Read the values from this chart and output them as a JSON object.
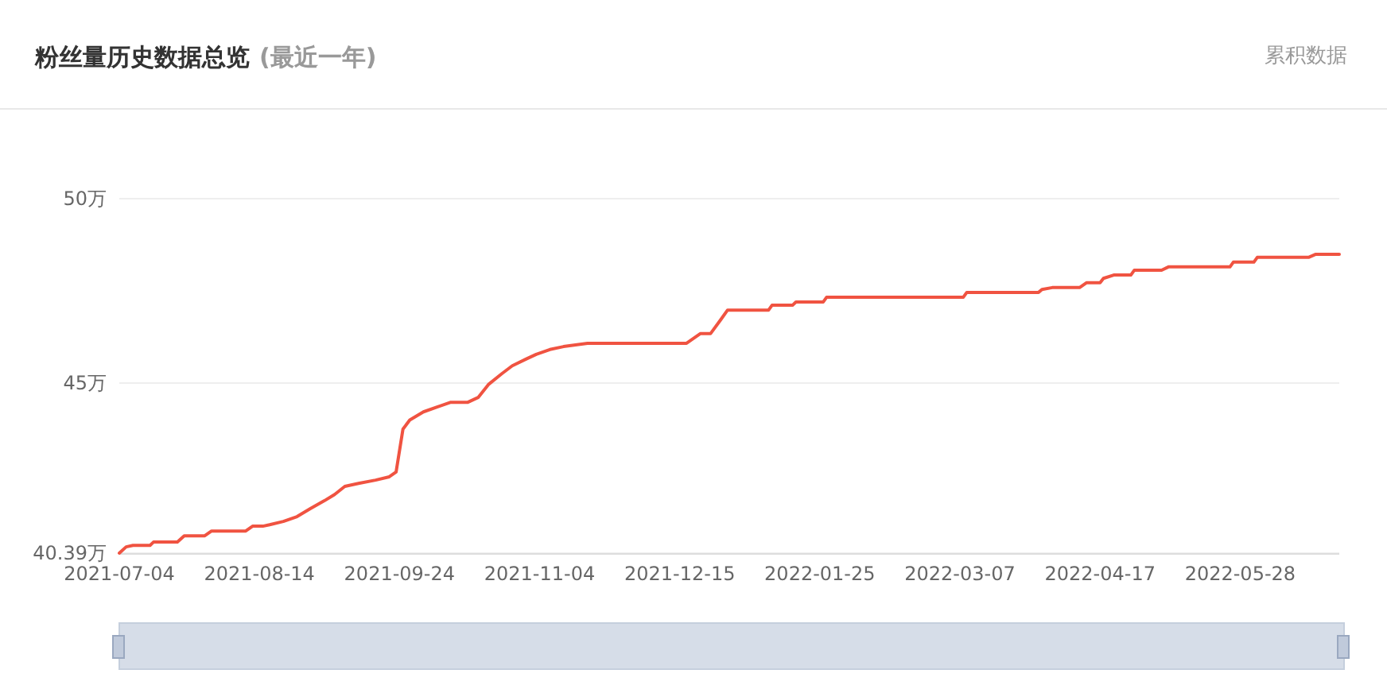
{
  "chart_data": {
    "type": "line",
    "title": "粉丝量历史数据总览",
    "subtitle": "(最近一年)",
    "annotations": [
      "累积数据"
    ],
    "x": [
      "2021-07-04",
      "2021-07-06",
      "2021-07-08",
      "2021-07-13",
      "2021-07-14",
      "2021-07-21",
      "2021-07-23",
      "2021-07-29",
      "2021-07-31",
      "2021-08-10",
      "2021-08-12",
      "2021-08-15",
      "2021-08-17",
      "2021-08-21",
      "2021-08-25",
      "2021-08-29",
      "2021-09-02",
      "2021-09-05",
      "2021-09-08",
      "2021-09-12",
      "2021-09-17",
      "2021-09-21",
      "2021-09-23",
      "2021-09-25",
      "2021-09-27",
      "2021-10-01",
      "2021-10-05",
      "2021-10-09",
      "2021-10-14",
      "2021-10-17",
      "2021-10-20",
      "2021-10-24",
      "2021-10-27",
      "2021-10-31",
      "2021-11-03",
      "2021-11-07",
      "2021-11-11",
      "2021-11-18",
      "2021-12-17",
      "2021-12-21",
      "2021-12-24",
      "2021-12-27",
      "2021-12-29",
      "2022-01-10",
      "2022-01-11",
      "2022-01-17",
      "2022-01-18",
      "2022-01-26",
      "2022-01-27",
      "2022-03-08",
      "2022-03-09",
      "2022-03-30",
      "2022-03-31",
      "2022-04-03",
      "2022-04-11",
      "2022-04-13",
      "2022-04-17",
      "2022-04-18",
      "2022-04-21",
      "2022-04-26",
      "2022-04-27",
      "2022-05-05",
      "2022-05-07",
      "2022-05-25",
      "2022-05-26",
      "2022-06-01",
      "2022-06-02",
      "2022-06-17",
      "2022-06-19",
      "2022-06-26"
    ],
    "series": [
      {
        "color": "#f05341",
        "values": [
          40.39,
          40.56,
          40.6,
          40.6,
          40.69,
          40.69,
          40.86,
          40.86,
          40.99,
          40.99,
          41.12,
          41.12,
          41.16,
          41.25,
          41.38,
          41.6,
          41.81,
          41.98,
          42.2,
          42.28,
          42.37,
          42.46,
          42.59,
          43.75,
          44.0,
          44.22,
          44.35,
          44.48,
          44.48,
          44.61,
          44.96,
          45.26,
          45.47,
          45.65,
          45.78,
          45.91,
          45.99,
          46.08,
          46.08,
          46.34,
          46.34,
          46.72,
          46.98,
          46.98,
          47.11,
          47.11,
          47.2,
          47.2,
          47.33,
          47.33,
          47.46,
          47.46,
          47.54,
          47.59,
          47.59,
          47.72,
          47.72,
          47.84,
          47.93,
          47.93,
          48.06,
          48.06,
          48.15,
          48.15,
          48.28,
          48.28,
          48.41,
          48.41,
          48.49,
          48.49
        ]
      }
    ],
    "xlim": [
      "2021-07-04",
      "2022-06-26"
    ],
    "xticks": [
      "2021-07-04",
      "2021-08-14",
      "2021-09-24",
      "2021-11-04",
      "2021-12-15",
      "2022-01-25",
      "2022-03-07",
      "2022-04-17",
      "2022-05-28"
    ],
    "ylim": [
      40.39,
      50
    ],
    "yticks": [
      {
        "value": 40.39,
        "label": "40.39万"
      },
      {
        "value": 45,
        "label": "45万"
      },
      {
        "value": 50,
        "label": "50万"
      }
    ],
    "grid": "y",
    "marker": "none",
    "line_style": "solid"
  }
}
